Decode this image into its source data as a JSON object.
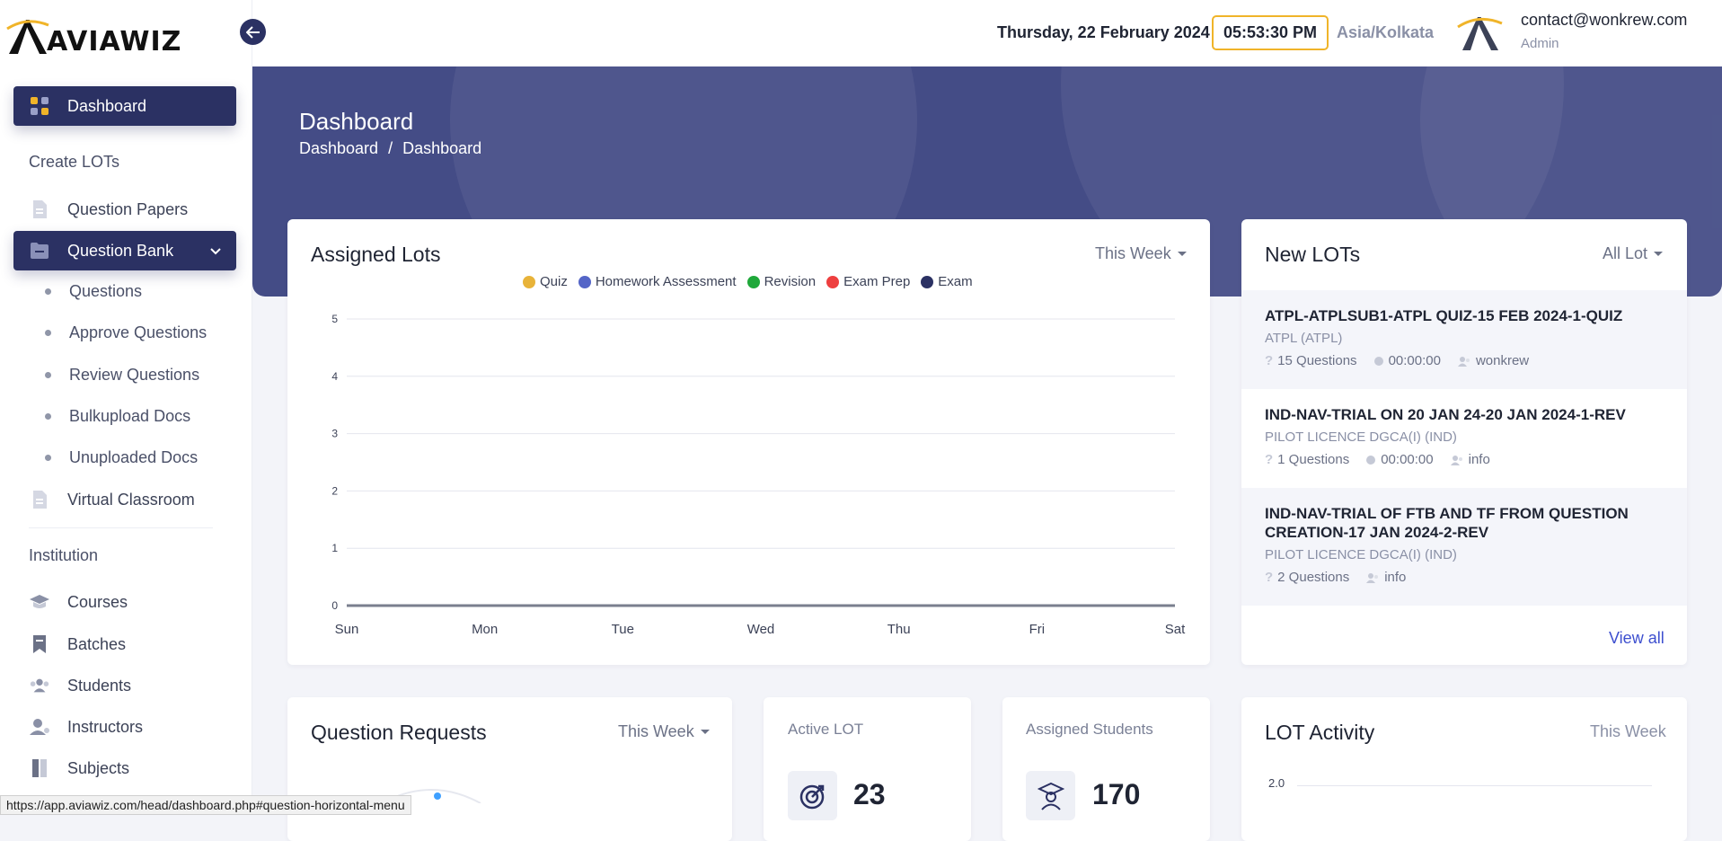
{
  "brand": {
    "name": "AVIAWIZ"
  },
  "sidebar": {
    "dashboard": "Dashboard",
    "section_create": "Create LOTs",
    "question_papers": "Question Papers",
    "question_bank": "Question Bank",
    "sub_items": [
      "Questions",
      "Approve Questions",
      "Review Questions",
      "Bulkupload Docs",
      "Unuploaded Docs"
    ],
    "virtual_classroom": "Virtual Classroom",
    "section_institution": "Institution",
    "courses": "Courses",
    "batches": "Batches",
    "students": "Students",
    "instructors": "Instructors",
    "subjects": "Subjects"
  },
  "header": {
    "date": "Thursday, 22 February 2024",
    "time": "05:53:30 PM",
    "timezone": "Asia/Kolkata",
    "user_email": "contact@wonkrew.com",
    "user_role": "Admin"
  },
  "page": {
    "title": "Dashboard",
    "breadcrumb_root": "Dashboard",
    "breadcrumb_sep": "/",
    "breadcrumb_current": "Dashboard"
  },
  "assigned_lots": {
    "title": "Assigned Lots",
    "filter": "This Week",
    "chart_data": {
      "type": "line",
      "categories": [
        "Sun",
        "Mon",
        "Tue",
        "Wed",
        "Thu",
        "Fri",
        "Sat"
      ],
      "ylim": [
        0,
        5
      ],
      "yticks": [
        "0",
        "1",
        "2",
        "3",
        "4",
        "5"
      ],
      "legend_position": "top",
      "series": [
        {
          "name": "Quiz",
          "color": "#e8b339",
          "values": [
            0,
            0,
            0,
            0,
            0,
            0,
            0
          ]
        },
        {
          "name": "Homework Assessment",
          "color": "#5465c7",
          "values": [
            0,
            0,
            0,
            0,
            0,
            0,
            0
          ]
        },
        {
          "name": "Revision",
          "color": "#1fa83a",
          "values": [
            0,
            0,
            0,
            0,
            0,
            0,
            0
          ]
        },
        {
          "name": "Exam Prep",
          "color": "#ee3f3f",
          "values": [
            0,
            0,
            0,
            0,
            0,
            0,
            0
          ]
        },
        {
          "name": "Exam",
          "color": "#2b3163",
          "values": [
            0,
            0,
            0,
            0,
            0,
            0,
            0
          ]
        }
      ]
    }
  },
  "new_lots": {
    "title": "New LOTs",
    "filter": "All Lot",
    "items": [
      {
        "title": "ATPL-ATPLSUB1-ATPL QUIZ-15 FEB 2024-1-QUIZ",
        "course": "ATPL (ATPL)",
        "questions": "15 Questions",
        "duration": "00:00:00",
        "user": "wonkrew"
      },
      {
        "title": "IND-NAV-TRIAL ON 20 JAN 24-20 JAN 2024-1-REV",
        "course": "PILOT LICENCE DGCA(I) (IND)",
        "questions": "1 Questions",
        "duration": "00:00:00",
        "user": "info"
      },
      {
        "title": "IND-NAV-TRIAL OF FTB AND TF FROM QUESTION CREATION-17 JAN 2024-2-REV",
        "course": "PILOT LICENCE DGCA(I) (IND)",
        "questions": "2 Questions",
        "user": "info"
      }
    ],
    "view_all": "View all"
  },
  "question_requests": {
    "title": "Question Requests",
    "filter": "This Week"
  },
  "active_lot": {
    "label": "Active LOT",
    "value": "23"
  },
  "assigned_students": {
    "label": "Assigned Students",
    "value": "170"
  },
  "lot_activity": {
    "title": "LOT Activity",
    "filter": "This Week",
    "ytick_top": "2.0"
  },
  "status_url": "https://app.aviawiz.com/head/dashboard.php#question-horizontal-menu"
}
